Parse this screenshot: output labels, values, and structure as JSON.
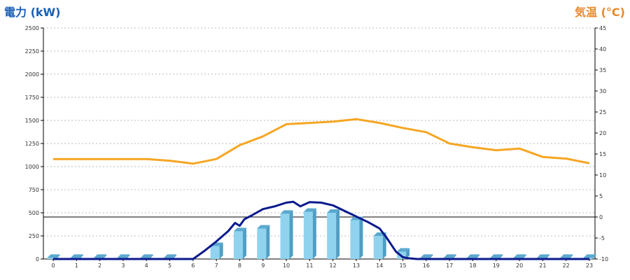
{
  "chart_data": {
    "type": "bar",
    "title_left": "電力 (kW)",
    "title_right": "気温 (°C)",
    "categories": [
      "0",
      "1",
      "2",
      "3",
      "4",
      "5",
      "6",
      "7",
      "8",
      "9",
      "10",
      "11",
      "12",
      "13",
      "14",
      "15",
      "16",
      "17",
      "18",
      "19",
      "20",
      "21",
      "22",
      "23"
    ],
    "y_left": {
      "min": 0,
      "max": 2500,
      "ticks": [
        "0",
        "250",
        "500",
        "750",
        "1000",
        "1250",
        "1500",
        "1750",
        "2000",
        "2250",
        "2500"
      ]
    },
    "y_right": {
      "min": -10,
      "max": 45,
      "ticks": [
        "-10",
        "-5",
        "0",
        "5",
        "10",
        "15",
        "20",
        "25",
        "30",
        "35",
        "40",
        "45"
      ]
    },
    "grid": true,
    "bar_values": [
      12,
      12,
      12,
      12,
      12,
      12,
      0,
      140,
      300,
      330,
      490,
      510,
      500,
      420,
      250,
      80,
      12,
      12,
      12,
      12,
      12,
      12,
      12,
      12
    ],
    "line_power": {
      "x": [
        0,
        1,
        2,
        3,
        4,
        5,
        6,
        6.5,
        7,
        7.5,
        7.8,
        8,
        8.2,
        8.5,
        9,
        9.5,
        10,
        10.3,
        10.6,
        11,
        11.5,
        12,
        12.5,
        13,
        13.5,
        14,
        14.3,
        14.7,
        15,
        15.2,
        15.6,
        16,
        17,
        18,
        19,
        20,
        21,
        22,
        23
      ],
      "y": [
        0,
        0,
        0,
        0,
        0,
        0,
        0,
        90,
        190,
        300,
        390,
        360,
        430,
        470,
        540,
        570,
        610,
        620,
        570,
        615,
        610,
        580,
        520,
        460,
        400,
        330,
        230,
        80,
        20,
        10,
        0,
        0,
        0,
        0,
        0,
        0,
        0,
        0,
        0
      ],
      "color": "#0a1a8c"
    },
    "line_temp": {
      "x": [
        0,
        1,
        2,
        3,
        4,
        5,
        6,
        7,
        8,
        9,
        10,
        11,
        12,
        13,
        14,
        15,
        16,
        17,
        18,
        19,
        20,
        21,
        22,
        23
      ],
      "y": [
        13.8,
        13.8,
        13.8,
        13.8,
        13.8,
        13.4,
        12.7,
        13.8,
        17.1,
        19.2,
        22.1,
        22.4,
        22.7,
        23.3,
        22.4,
        21.2,
        20.2,
        17.5,
        16.6,
        15.9,
        16.3,
        14.3,
        13.9,
        12.8
      ],
      "color": "#f5a623"
    },
    "bar_color": "#8fd3ef",
    "bar_side_color": "#4f9ec4",
    "bar_top_color": "#5aa8cf",
    "reference_line": {
      "axis": "right",
      "value": 0
    }
  }
}
